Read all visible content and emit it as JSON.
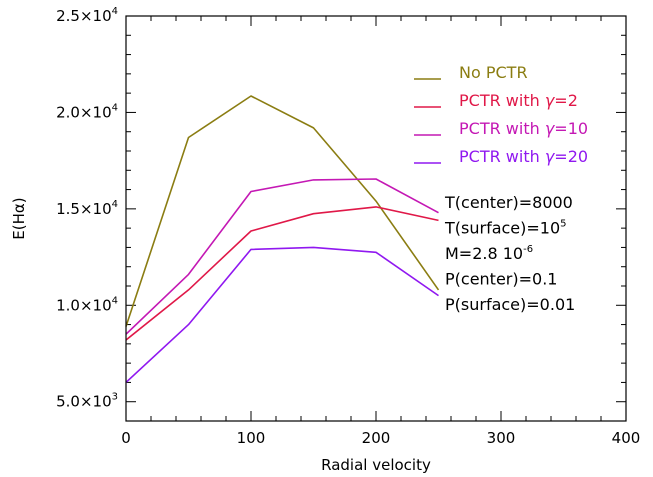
{
  "chart_data": {
    "type": "line",
    "title": "",
    "xlabel": "Radial velocity",
    "ylabel": "E(Hα)",
    "xlim": [
      0,
      400
    ],
    "ylim": [
      4000,
      25000
    ],
    "xticks": [
      {
        "value": 0,
        "label": "0"
      },
      {
        "value": 100,
        "label": "100"
      },
      {
        "value": 200,
        "label": "200"
      },
      {
        "value": 300,
        "label": "300"
      },
      {
        "value": 400,
        "label": "400"
      }
    ],
    "yticks": [
      {
        "value": 5000,
        "mantissa": "5.0",
        "exponent": "3"
      },
      {
        "value": 10000,
        "mantissa": "1.0",
        "exponent": "4"
      },
      {
        "value": 15000,
        "mantissa": "1.5",
        "exponent": "4"
      },
      {
        "value": 20000,
        "mantissa": "2.0",
        "exponent": "4"
      },
      {
        "value": 25000,
        "mantissa": "2.5",
        "exponent": "4"
      }
    ],
    "times_sign": "×10",
    "legend_position": "top-right",
    "series": [
      {
        "name": "No PCTR",
        "legend_prefix": "No PCTR",
        "legend_symbol": "",
        "legend_value": "",
        "color": "#8b7d12",
        "x": [
          0,
          50,
          100,
          150,
          200,
          250
        ],
        "y": [
          8900,
          18700,
          20850,
          19200,
          15400,
          10800
        ]
      },
      {
        "name": "PCTR with γ=2",
        "legend_prefix": "PCTR with ",
        "legend_symbol": "γ",
        "legend_value": "=2",
        "color": "#e01848",
        "x": [
          0,
          50,
          100,
          150,
          200,
          250
        ],
        "y": [
          8200,
          10800,
          13850,
          14750,
          15100,
          14400
        ]
      },
      {
        "name": "PCTR with γ=10",
        "legend_prefix": "PCTR with ",
        "legend_symbol": "γ",
        "legend_value": "=10",
        "color": "#c418b4",
        "x": [
          0,
          50,
          100,
          150,
          200,
          250
        ],
        "y": [
          8500,
          11600,
          15900,
          16500,
          16550,
          14800
        ]
      },
      {
        "name": "PCTR with γ=20",
        "legend_prefix": "PCTR with ",
        "legend_symbol": "γ",
        "legend_value": "=20",
        "color": "#9018f0",
        "x": [
          0,
          50,
          100,
          150,
          200,
          250
        ],
        "y": [
          6000,
          9000,
          12900,
          13000,
          12750,
          10500
        ]
      }
    ],
    "annotations": [
      {
        "base": "T(center)=8000",
        "sup": ""
      },
      {
        "base": "T(surface)=10",
        "sup": "5"
      },
      {
        "base": "M=2.8 10",
        "sup": "-6"
      },
      {
        "base": "P(center)=0.1",
        "sup": ""
      },
      {
        "base": "P(surface)=0.01",
        "sup": ""
      }
    ],
    "grid": false
  }
}
